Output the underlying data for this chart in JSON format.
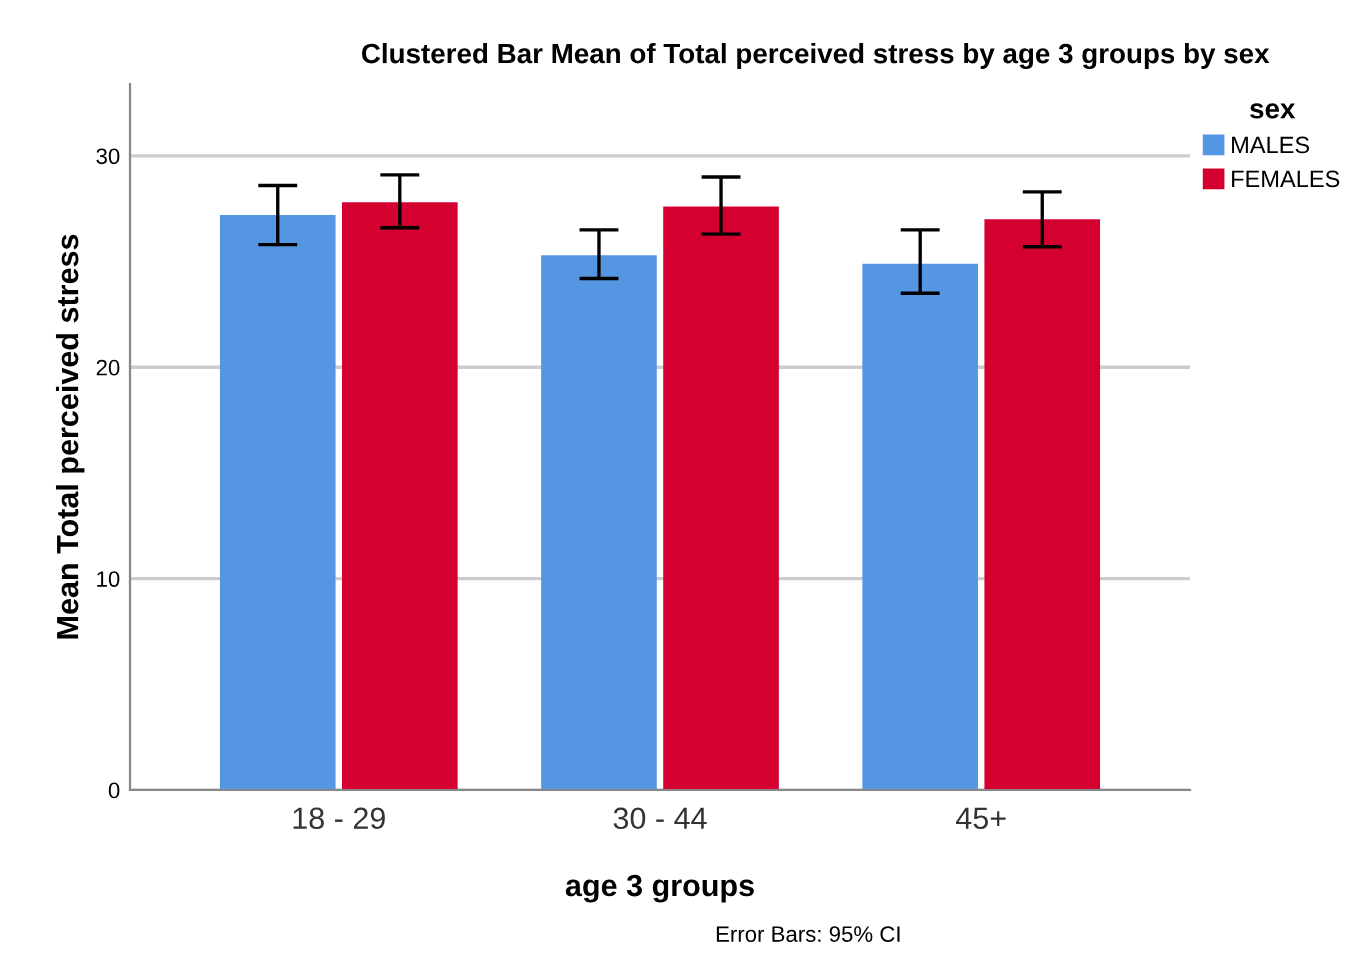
{
  "chart_data": {
    "type": "bar",
    "title": "Clustered Bar Mean of Total perceived stress by age 3 groups by sex",
    "xlabel": "age 3 groups",
    "ylabel": "Mean Total perceived stress",
    "legend_title": "sex",
    "categories": [
      "18 - 29",
      "30 - 44",
      "45+"
    ],
    "series": [
      {
        "name": "MALES",
        "color": "#5596e3",
        "values": [
          27.2,
          25.3,
          24.9
        ],
        "errors": [
          [
            25.8,
            28.6
          ],
          [
            24.2,
            26.5
          ],
          [
            23.5,
            26.5
          ]
        ]
      },
      {
        "name": "FEMALES",
        "color": "#d40030",
        "values": [
          27.8,
          27.6,
          27.0
        ],
        "errors": [
          [
            26.6,
            29.1
          ],
          [
            26.3,
            29.0
          ],
          [
            25.7,
            28.3
          ]
        ]
      }
    ],
    "ylim": [
      0,
      33.4
    ],
    "yticks": [
      0,
      10,
      20,
      30
    ],
    "grid": "y",
    "legend": "top right",
    "annotations": [
      "Error Bars: 95% CI"
    ]
  }
}
